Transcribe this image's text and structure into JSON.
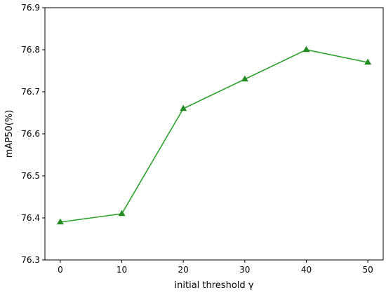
{
  "chart_data": {
    "type": "line",
    "title": "",
    "xlabel": "initial threshold γ",
    "ylabel": "mAP50(%)",
    "xlim": [
      -2.5,
      52.5
    ],
    "ylim": [
      76.3,
      76.9
    ],
    "x_ticks": [
      "0",
      "10",
      "20",
      "30",
      "40",
      "50"
    ],
    "y_ticks": [
      "76.3",
      "76.4",
      "76.5",
      "76.6",
      "76.7",
      "76.8",
      "76.9"
    ],
    "grid": false,
    "legend": "none",
    "series": [
      {
        "x": [
          0,
          10,
          20,
          30,
          40,
          50
        ],
        "values": [
          76.39,
          76.41,
          76.66,
          76.73,
          76.8,
          76.77
        ],
        "color": "#2ca02c",
        "marker": "triangle-up"
      }
    ]
  }
}
